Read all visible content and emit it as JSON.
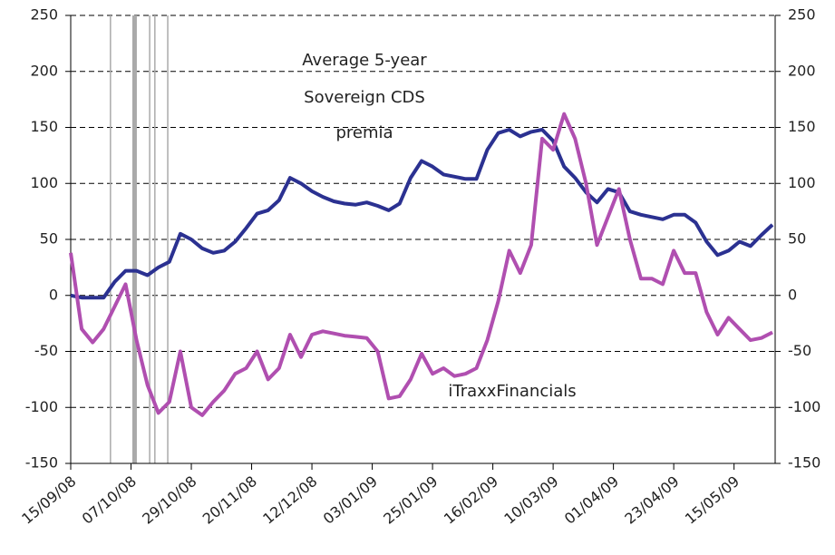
{
  "chart_data": {
    "type": "line",
    "annotations": [
      "Average 5-year",
      "Sovereign CDS",
      "premia",
      "iTraxxFinancials"
    ],
    "x": [
      0,
      4,
      8,
      12,
      16,
      20,
      24,
      28,
      32,
      36,
      40,
      44,
      48,
      52,
      56,
      60,
      64,
      68,
      72,
      76,
      80,
      84,
      88,
      92,
      96,
      100,
      104,
      108,
      112,
      116,
      120,
      124,
      128,
      132,
      136,
      140,
      144,
      148,
      152,
      156,
      160,
      164,
      168,
      172,
      176,
      180,
      184,
      188,
      192,
      196,
      200,
      204,
      208,
      212,
      216,
      220,
      224,
      228,
      232,
      236,
      240,
      244,
      248,
      252,
      256
    ],
    "series": [
      {
        "name": "Average 5-year Sovereign CDS premia",
        "color": "#2b3191",
        "values": [
          0,
          -2,
          -2,
          -2,
          12,
          22,
          22,
          18,
          25,
          30,
          55,
          50,
          42,
          38,
          40,
          48,
          60,
          73,
          76,
          85,
          105,
          100,
          93,
          88,
          84,
          82,
          81,
          83,
          80,
          76,
          82,
          105,
          120,
          115,
          108,
          106,
          104,
          104,
          130,
          145,
          148,
          142,
          146,
          148,
          138,
          115,
          105,
          92,
          83,
          95,
          92,
          75,
          72,
          70,
          68,
          72,
          72,
          65,
          48,
          36,
          40,
          48,
          44,
          54,
          63
        ]
      },
      {
        "name": "iTraxxFinancials",
        "color": "#b04fb0",
        "values": [
          38,
          -30,
          -42,
          -30,
          -10,
          10,
          -40,
          -80,
          -105,
          -95,
          -50,
          -100,
          -107,
          -95,
          -85,
          -70,
          -65,
          -50,
          -75,
          -65,
          -35,
          -55,
          -35,
          -32,
          -34,
          -36,
          -37,
          -38,
          -50,
          -92,
          -90,
          -75,
          -52,
          -70,
          -65,
          -72,
          -70,
          -65,
          -40,
          -5,
          40,
          20,
          45,
          140,
          130,
          162,
          140,
          100,
          45,
          70,
          95,
          50,
          15,
          15,
          10,
          40,
          20,
          20,
          -15,
          -35,
          -20,
          -30,
          -40,
          -38,
          -33
        ]
      }
    ],
    "event_lines": [
      14.5,
      23.3,
      28.8,
      30.7,
      35.4
    ],
    "event_color": "#aaaaaa",
    "xlim": [
      0,
      257
    ],
    "xticks": [
      {
        "value": 0,
        "label": "15/09/08"
      },
      {
        "value": 22,
        "label": "07/10/08"
      },
      {
        "value": 44,
        "label": "29/10/08"
      },
      {
        "value": 66,
        "label": "20/11/08"
      },
      {
        "value": 88,
        "label": "12/12/08"
      },
      {
        "value": 110,
        "label": "03/01/09"
      },
      {
        "value": 132,
        "label": "25/01/09"
      },
      {
        "value": 154,
        "label": "16/02/09"
      },
      {
        "value": 176,
        "label": "10/03/09"
      },
      {
        "value": 198,
        "label": "01/04/09"
      },
      {
        "value": 220,
        "label": "23/04/09"
      },
      {
        "value": 242,
        "label": "15/05/09"
      }
    ],
    "ylim": [
      -150,
      250
    ],
    "yticks": [
      -150,
      -100,
      -50,
      0,
      50,
      100,
      150,
      200,
      250
    ],
    "y2lim": [
      -150,
      250
    ],
    "y2ticks": [
      -150,
      -100,
      -50,
      0,
      50,
      100,
      150,
      200,
      250
    ],
    "grid": true
  }
}
